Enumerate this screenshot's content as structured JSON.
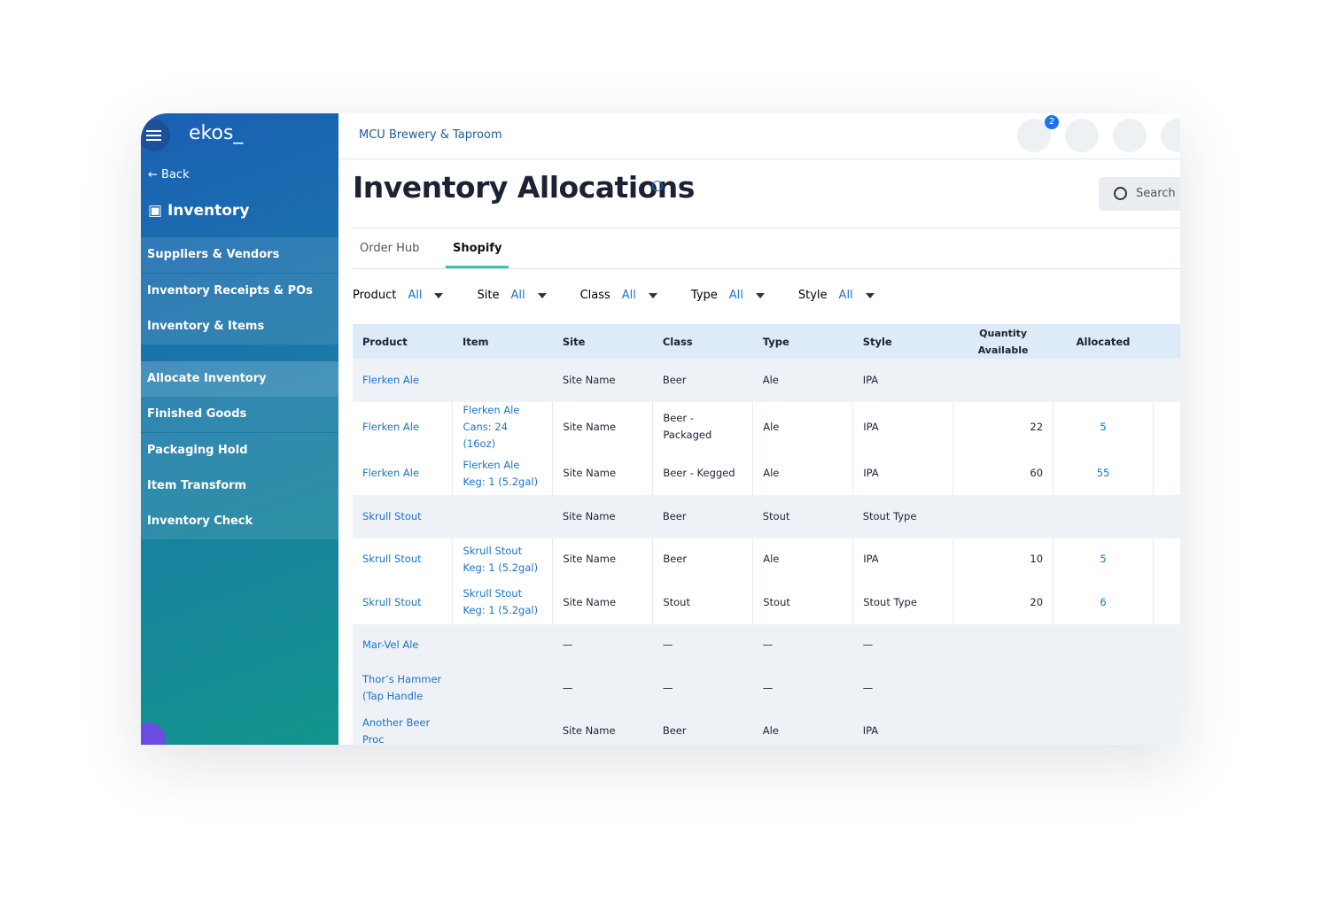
{
  "sidebar": {
    "logo": "ekos_",
    "back": "Back",
    "section": "Inventory",
    "menu": [
      "Suppliers & Vendors",
      "Inventory Receipts & POs",
      "Inventory & Items"
    ],
    "submenu": [
      "Allocate Inventory",
      "Finished Goods",
      "Packaging Hold",
      "Item Transform",
      "Inventory Check"
    ]
  },
  "header": {
    "company": "MCU Brewery & Taproom",
    "notification_count": 2
  },
  "page": {
    "title": "Inventory Allocations",
    "search": "Search"
  },
  "tabs": [
    {
      "label": "Order Hub",
      "active": false
    },
    {
      "label": "Shopify",
      "active": true
    }
  ],
  "filters": [
    {
      "label": "Product",
      "value": "All"
    },
    {
      "label": "Site",
      "value": "All"
    },
    {
      "label": "Class",
      "value": "All"
    },
    {
      "label": "Type",
      "value": "All"
    },
    {
      "label": "Style",
      "value": "All"
    }
  ],
  "table": {
    "columns": [
      "Product",
      "Item",
      "Site",
      "Class",
      "Type",
      "Style",
      "Quantity Available",
      "Allocated"
    ],
    "rows": [
      {
        "group": true,
        "cells": [
          "Flerken Ale",
          null,
          "Site Name",
          "Beer",
          "Ale",
          "IPA",
          null,
          null
        ]
      },
      {
        "group": false,
        "cells": [
          "Flerken Ale",
          "Flerken Ale Cans: 24 (16oz)",
          "Site Name",
          "Beer - Packaged",
          "Ale",
          "IPA",
          22,
          5
        ]
      },
      {
        "group": false,
        "cells": [
          "Flerken Ale",
          "Flerken Ale Keg: 1 (5.2gal)",
          "Site Name",
          "Beer - Kegged",
          "Ale",
          "IPA",
          60,
          55
        ]
      },
      {
        "group": true,
        "cells": [
          "Skrull Stout",
          null,
          "Site Name",
          "Beer",
          "Stout",
          "Stout Type",
          null,
          null
        ]
      },
      {
        "group": false,
        "cells": [
          "Skrull Stout",
          "Skrull Stout Keg: 1 (5.2gal)",
          "Site Name",
          "Beer",
          "Ale",
          "IPA",
          10,
          5
        ]
      },
      {
        "group": false,
        "cells": [
          "Skrull Stout",
          "Skrull Stout Keg: 1 (5.2gal)",
          "Site Name",
          "Stout",
          "Stout",
          "Stout Type",
          20,
          6
        ]
      },
      {
        "group": true,
        "cells": [
          "Mar-Vel Ale",
          null,
          "—",
          "—",
          "—",
          "—",
          null,
          null
        ]
      },
      {
        "group": true,
        "cells": [
          "Thor’s Hammer (Tap Handle",
          null,
          "—",
          "—",
          "—",
          "—",
          null,
          null
        ]
      },
      {
        "group": true,
        "cells": [
          "Another Beer Proc",
          null,
          "Site Name",
          "Beer",
          "Ale",
          "IPA",
          null,
          null
        ]
      }
    ]
  }
}
